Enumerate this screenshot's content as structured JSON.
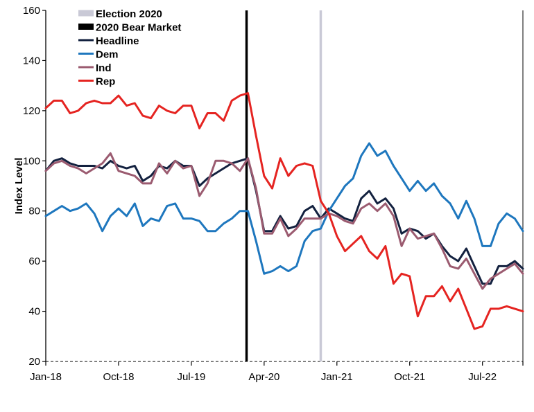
{
  "chart_data": {
    "type": "line",
    "title": "",
    "xlabel": "",
    "ylabel": "Index Level",
    "ylim": [
      20,
      160
    ],
    "yticks": [
      "20",
      "40",
      "60",
      "80",
      "100",
      "120",
      "140",
      "160"
    ],
    "x_start": "2018-01",
    "x_end": "2022-12",
    "xticks": [
      {
        "label": "Jan-18",
        "date": "2018-01"
      },
      {
        "label": "Oct-18",
        "date": "2018-10"
      },
      {
        "label": "Jul-19",
        "date": "2019-07"
      },
      {
        "label": "Apr-20",
        "date": "2020-04"
      },
      {
        "label": "Jan-21",
        "date": "2021-01"
      },
      {
        "label": "Oct-21",
        "date": "2021-10"
      },
      {
        "label": "Jul-22",
        "date": "2022-07"
      }
    ],
    "legend_position": "top-left",
    "grid": false,
    "x": [
      "2018-01",
      "2018-02",
      "2018-03",
      "2018-04",
      "2018-05",
      "2018-06",
      "2018-07",
      "2018-08",
      "2018-09",
      "2018-10",
      "2018-11",
      "2018-12",
      "2019-01",
      "2019-02",
      "2019-03",
      "2019-04",
      "2019-05",
      "2019-06",
      "2019-07",
      "2019-08",
      "2019-09",
      "2019-10",
      "2019-11",
      "2019-12",
      "2020-01",
      "2020-02",
      "2020-03",
      "2020-04",
      "2020-05",
      "2020-06",
      "2020-07",
      "2020-08",
      "2020-09",
      "2020-10",
      "2020-11",
      "2020-12",
      "2021-01",
      "2021-02",
      "2021-03",
      "2021-04",
      "2021-05",
      "2021-06",
      "2021-07",
      "2021-08",
      "2021-09",
      "2021-10",
      "2021-11",
      "2021-12",
      "2022-01",
      "2022-02",
      "2022-03",
      "2022-04",
      "2022-05",
      "2022-06",
      "2022-07",
      "2022-08",
      "2022-09",
      "2022-10",
      "2022-11",
      "2022-12"
    ],
    "reference_lines": [
      {
        "name": "Election 2020",
        "date": "2020-11",
        "color": "#c9c9d6"
      },
      {
        "name": "2020 Bear Market",
        "date": "2020-02",
        "color": "#000000"
      }
    ],
    "series": [
      {
        "name": "Headline",
        "color": "#13213f",
        "values": [
          96,
          100,
          101,
          99,
          98,
          98,
          98,
          97,
          100,
          98,
          97,
          98,
          92,
          94,
          98,
          97,
          100,
          98,
          98,
          90,
          93,
          95,
          97,
          99,
          100,
          101,
          88,
          72,
          72,
          78,
          73,
          74,
          80,
          82,
          77,
          81,
          79,
          77,
          76,
          85,
          88,
          83,
          85,
          81,
          71,
          73,
          72,
          69,
          71,
          66,
          62,
          60,
          65,
          58,
          51,
          51,
          58,
          58,
          60,
          57
        ]
      },
      {
        "name": "Dem",
        "color": "#1e77be",
        "values": [
          78,
          80,
          82,
          80,
          81,
          83,
          79,
          72,
          78,
          81,
          78,
          83,
          74,
          77,
          76,
          82,
          83,
          77,
          77,
          76,
          72,
          72,
          75,
          77,
          80,
          80,
          68,
          55,
          56,
          58,
          56,
          58,
          68,
          72,
          73,
          80,
          85,
          90,
          93,
          102,
          107,
          102,
          104,
          98,
          93,
          88,
          92,
          88,
          91,
          86,
          83,
          77,
          84,
          77,
          66,
          66,
          75,
          79,
          77,
          72
        ]
      },
      {
        "name": "Ind",
        "color": "#9b5b70",
        "values": [
          96,
          99,
          100,
          98,
          97,
          95,
          97,
          99,
          103,
          96,
          95,
          94,
          91,
          91,
          99,
          95,
          100,
          97,
          98,
          86,
          91,
          100,
          100,
          99,
          96,
          101,
          89,
          71,
          71,
          77,
          70,
          73,
          77,
          77,
          77,
          79,
          78,
          76,
          75,
          81,
          83,
          80,
          83,
          78,
          66,
          73,
          69,
          70,
          71,
          65,
          58,
          57,
          61,
          55,
          49,
          53,
          55,
          57,
          59,
          55
        ]
      },
      {
        "name": "Rep",
        "color": "#e52421",
        "values": [
          121,
          124,
          124,
          119,
          120,
          123,
          124,
          123,
          123,
          126,
          122,
          123,
          118,
          117,
          122,
          120,
          119,
          122,
          122,
          113,
          119,
          119,
          116,
          124,
          126,
          127,
          110,
          94,
          89,
          101,
          94,
          98,
          99,
          98,
          84,
          79,
          70,
          64,
          67,
          70,
          64,
          61,
          66,
          51,
          55,
          54,
          38,
          46,
          46,
          50,
          44,
          49,
          41,
          33,
          34,
          41,
          41,
          42,
          41,
          40
        ]
      }
    ]
  }
}
